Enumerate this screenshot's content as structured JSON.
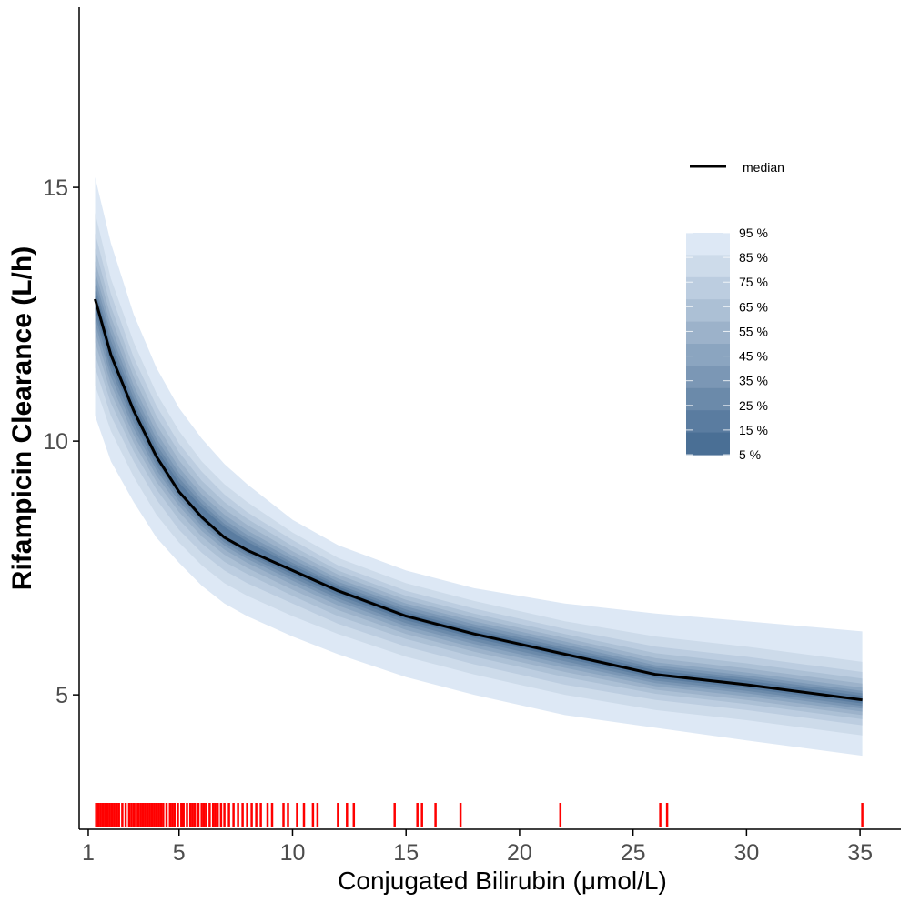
{
  "chart_data": {
    "type": "area",
    "xlabel": "Conjugated Bilirubin (μmol/L)",
    "ylabel": "Rifampicin Clearance (L/h)",
    "xlim": [
      0.6,
      36.8
    ],
    "ylim": [
      2.35,
      18.55
    ],
    "xticks": [
      1,
      5,
      10,
      15,
      20,
      25,
      30,
      35
    ],
    "yticks": [
      5,
      10,
      15
    ],
    "grid": false,
    "colors": {
      "median": "#000000",
      "rug": "#ff0000",
      "band_light": "#dde8f5",
      "band_dark": "#4a6f95",
      "axis": "#000000"
    },
    "x": [
      1.3,
      2,
      3,
      4,
      5,
      6,
      7,
      8,
      10,
      12,
      15,
      18,
      20,
      22,
      26,
      30,
      35.1
    ],
    "median": {
      "name": "median",
      "values": [
        12.8,
        11.7,
        10.6,
        9.7,
        9.0,
        8.5,
        8.1,
        7.85,
        7.45,
        7.05,
        6.55,
        6.2,
        6.0,
        5.8,
        5.4,
        5.2,
        4.9
      ]
    },
    "bands": [
      {
        "name": "95 %",
        "lower": [
          10.5,
          9.6,
          8.8,
          8.1,
          7.6,
          7.15,
          6.8,
          6.55,
          6.15,
          5.8,
          5.35,
          5.0,
          4.8,
          4.6,
          4.35,
          4.1,
          3.8
        ],
        "upper": [
          15.2,
          13.9,
          12.5,
          11.45,
          10.65,
          10.05,
          9.55,
          9.15,
          8.45,
          7.95,
          7.45,
          7.1,
          6.95,
          6.8,
          6.6,
          6.45,
          6.25
        ]
      },
      {
        "name": "85 %",
        "lower": [
          11.1,
          10.2,
          9.3,
          8.55,
          8.0,
          7.55,
          7.2,
          6.95,
          6.55,
          6.2,
          5.75,
          5.4,
          5.2,
          5.0,
          4.7,
          4.5,
          4.2
        ],
        "upper": [
          14.5,
          13.2,
          11.95,
          10.95,
          10.2,
          9.6,
          9.15,
          8.8,
          8.2,
          7.7,
          7.2,
          6.85,
          6.65,
          6.45,
          6.15,
          5.95,
          5.65
        ]
      },
      {
        "name": "75 %",
        "lower": [
          11.45,
          10.5,
          9.6,
          8.85,
          8.25,
          7.8,
          7.45,
          7.2,
          6.8,
          6.4,
          5.95,
          5.6,
          5.4,
          5.2,
          4.9,
          4.7,
          4.4
        ],
        "upper": [
          14.1,
          12.9,
          11.65,
          10.7,
          9.95,
          9.4,
          8.95,
          8.6,
          8.05,
          7.55,
          7.05,
          6.7,
          6.5,
          6.3,
          5.95,
          5.75,
          5.45
        ]
      },
      {
        "name": "65 %",
        "lower": [
          11.7,
          10.75,
          9.8,
          9.05,
          8.45,
          7.98,
          7.62,
          7.38,
          6.95,
          6.55,
          6.1,
          5.75,
          5.55,
          5.35,
          5.02,
          4.82,
          4.52
        ],
        "upper": [
          13.8,
          12.65,
          11.45,
          10.5,
          9.78,
          9.22,
          8.8,
          8.47,
          7.93,
          7.45,
          6.95,
          6.6,
          6.4,
          6.2,
          5.82,
          5.62,
          5.32
        ]
      },
      {
        "name": "55 %",
        "lower": [
          11.95,
          10.95,
          9.97,
          9.2,
          8.6,
          8.12,
          7.76,
          7.5,
          7.07,
          6.67,
          6.2,
          5.85,
          5.65,
          5.45,
          5.1,
          4.9,
          4.6
        ],
        "upper": [
          13.55,
          12.45,
          11.27,
          10.33,
          9.62,
          9.07,
          8.66,
          8.35,
          7.83,
          7.37,
          6.87,
          6.52,
          6.32,
          6.12,
          5.72,
          5.52,
          5.22
        ]
      },
      {
        "name": "45 %",
        "lower": [
          12.15,
          11.12,
          10.12,
          9.32,
          8.72,
          8.23,
          7.86,
          7.6,
          7.17,
          6.76,
          6.28,
          5.93,
          5.73,
          5.53,
          5.17,
          4.97,
          4.67
        ],
        "upper": [
          13.35,
          12.27,
          11.1,
          10.18,
          9.48,
          8.95,
          8.55,
          8.24,
          7.74,
          7.29,
          6.8,
          6.45,
          6.25,
          6.05,
          5.64,
          5.44,
          5.14
        ]
      },
      {
        "name": "35 %",
        "lower": [
          12.32,
          11.27,
          10.25,
          9.43,
          8.81,
          8.32,
          7.94,
          7.68,
          7.25,
          6.84,
          6.35,
          6.0,
          5.8,
          5.6,
          5.23,
          5.03,
          4.73
        ],
        "upper": [
          13.2,
          12.12,
          10.97,
          10.05,
          9.37,
          8.85,
          8.45,
          8.15,
          7.67,
          7.23,
          6.74,
          6.39,
          6.19,
          5.99,
          5.58,
          5.38,
          5.08
        ]
      },
      {
        "name": "25 %",
        "lower": [
          12.47,
          11.4,
          10.37,
          9.52,
          8.89,
          8.39,
          8.0,
          7.74,
          7.31,
          6.9,
          6.41,
          6.06,
          5.86,
          5.66,
          5.28,
          5.08,
          4.78
        ],
        "upper": [
          13.07,
          11.98,
          10.85,
          9.94,
          9.27,
          8.77,
          8.37,
          8.08,
          7.6,
          7.17,
          6.68,
          6.33,
          6.13,
          5.93,
          5.53,
          5.33,
          5.03
        ]
      },
      {
        "name": "15 %",
        "lower": [
          12.6,
          11.52,
          10.47,
          9.6,
          8.95,
          8.44,
          8.05,
          7.79,
          7.37,
          6.96,
          6.47,
          6.12,
          5.92,
          5.72,
          5.33,
          5.13,
          4.83
        ],
        "upper": [
          12.97,
          11.87,
          10.75,
          9.85,
          9.18,
          8.7,
          8.31,
          8.02,
          7.55,
          7.13,
          6.63,
          6.28,
          6.08,
          5.88,
          5.48,
          5.28,
          4.98
        ]
      },
      {
        "name": "5 %",
        "lower": [
          12.73,
          11.63,
          10.56,
          9.66,
          8.99,
          8.48,
          8.09,
          7.83,
          7.42,
          7.01,
          6.51,
          6.16,
          5.96,
          5.76,
          5.37,
          5.17,
          4.87
        ],
        "upper": [
          12.87,
          11.77,
          10.64,
          9.74,
          9.03,
          8.52,
          8.12,
          7.88,
          7.49,
          7.09,
          6.59,
          6.24,
          6.04,
          5.84,
          5.43,
          5.23,
          4.93
        ]
      }
    ],
    "legend_median_label": "median",
    "legend_band_labels": [
      "95 %",
      "85 %",
      "75 %",
      "65 %",
      "55 %",
      "45 %",
      "35 %",
      "25 %",
      "15 %",
      "5 %"
    ],
    "rug": [
      1.35,
      1.45,
      1.55,
      1.65,
      1.75,
      1.85,
      1.95,
      2.05,
      2.15,
      2.25,
      2.35,
      2.5,
      2.65,
      2.8,
      2.9,
      3.0,
      3.1,
      3.2,
      3.3,
      3.4,
      3.5,
      3.6,
      3.7,
      3.8,
      3.9,
      4.0,
      4.1,
      4.2,
      4.3,
      4.45,
      4.6,
      4.7,
      4.8,
      4.95,
      5.1,
      5.2,
      5.35,
      5.5,
      5.6,
      5.7,
      5.85,
      6.0,
      6.1,
      6.2,
      6.35,
      6.5,
      6.6,
      6.7,
      6.85,
      7.0,
      7.2,
      7.4,
      7.6,
      7.8,
      8.0,
      8.2,
      8.4,
      8.6,
      8.9,
      9.1,
      9.6,
      9.8,
      10.2,
      10.5,
      10.9,
      11.1,
      12.0,
      12.4,
      12.7,
      14.5,
      15.5,
      15.7,
      16.3,
      17.4,
      21.8,
      26.2,
      26.5,
      35.1
    ]
  }
}
